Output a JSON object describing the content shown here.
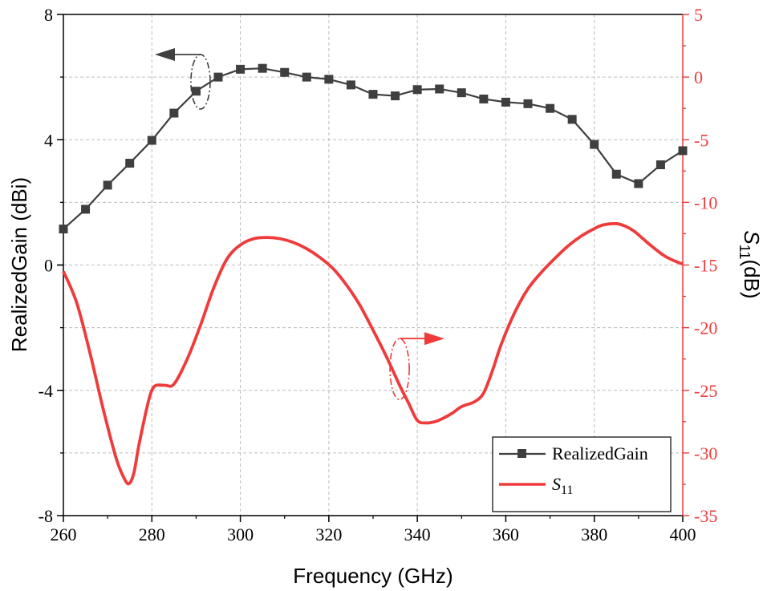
{
  "chart_data": {
    "type": "line",
    "xlabel": "Frequency (GHz)",
    "ylabel_left": "RealizedGain (dBi)",
    "ylabel_right_main": "S",
    "ylabel_right_sub": "11",
    "ylabel_right_tail": "(dB)",
    "xlim": [
      260,
      400
    ],
    "ylim_left": [
      -8,
      8
    ],
    "ylim_right": [
      -35,
      5
    ],
    "xticks": [
      "260",
      "280",
      "300",
      "320",
      "340",
      "360",
      "380",
      "400"
    ],
    "yticks_left": [
      "-8",
      "-4",
      "0",
      "4",
      "8"
    ],
    "yticks_right": [
      "-35",
      "-30",
      "-25",
      "-20",
      "-15",
      "-10",
      "-5",
      "0",
      "5"
    ],
    "grid": true,
    "legend_position": "bottom-right",
    "series": [
      {
        "name": "RealizedGain",
        "axis": "left",
        "color": "#3f3f3f",
        "marker": "square",
        "x": [
          260,
          265,
          270,
          275,
          280,
          285,
          290,
          295,
          300,
          305,
          310,
          315,
          320,
          325,
          330,
          335,
          340,
          345,
          350,
          355,
          360,
          365,
          370,
          375,
          380,
          385,
          390,
          395,
          400
        ],
        "y": [
          1.15,
          1.78,
          2.55,
          3.25,
          3.98,
          4.85,
          5.55,
          6.0,
          6.25,
          6.28,
          6.15,
          6.0,
          5.93,
          5.75,
          5.45,
          5.4,
          5.6,
          5.62,
          5.5,
          5.3,
          5.2,
          5.15,
          5.0,
          4.65,
          3.85,
          2.9,
          2.6,
          3.2,
          3.65
        ]
      },
      {
        "name": "S",
        "name_sub": "11",
        "axis": "right",
        "color": "#ef3b3b",
        "x": [
          260,
          263,
          266,
          269,
          272,
          274,
          275,
          276,
          277,
          279,
          280,
          281,
          283,
          285,
          288,
          291,
          294,
          297,
          300,
          303,
          306,
          309,
          312,
          315,
          318,
          321,
          324,
          327,
          330,
          333,
          336,
          338,
          340,
          342,
          344,
          346,
          348,
          350,
          353,
          355,
          357,
          359,
          362,
          365,
          368,
          371,
          374,
          377,
          380,
          382,
          385,
          387,
          389,
          391,
          393,
          396,
          399,
          400
        ],
        "y": [
          -15.5,
          -18.0,
          -22.0,
          -26.5,
          -30.5,
          -32.2,
          -32.4,
          -31.5,
          -29.5,
          -26.2,
          -25.0,
          -24.6,
          -24.6,
          -24.5,
          -22.5,
          -19.8,
          -16.8,
          -14.5,
          -13.4,
          -12.9,
          -12.8,
          -12.9,
          -13.2,
          -13.7,
          -14.4,
          -15.3,
          -16.6,
          -18.2,
          -20.2,
          -22.3,
          -24.6,
          -26.0,
          -27.4,
          -27.6,
          -27.5,
          -27.2,
          -26.8,
          -26.3,
          -25.9,
          -25.2,
          -23.4,
          -21.3,
          -18.8,
          -16.9,
          -15.6,
          -14.5,
          -13.5,
          -12.7,
          -12.1,
          -11.8,
          -11.7,
          -11.9,
          -12.3,
          -12.9,
          -13.5,
          -14.3,
          -14.8,
          -14.9
        ]
      }
    ],
    "annotations": [
      {
        "target": "RealizedGain",
        "axis": "left",
        "arrow": "left"
      },
      {
        "target": "S11",
        "axis": "right",
        "arrow": "right"
      }
    ],
    "colors": {
      "gain": "#3f3f3f",
      "s11": "#ef3b3b",
      "axis_right": "#ef3b3b",
      "grid": "#bdbdbd"
    }
  }
}
